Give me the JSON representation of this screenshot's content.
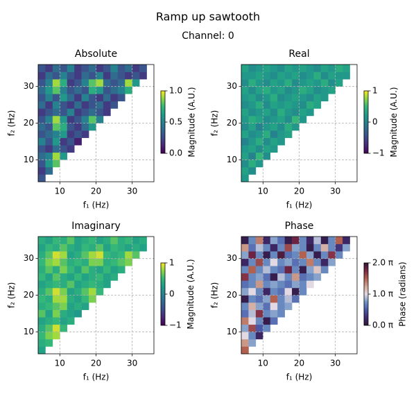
{
  "title": "Ramp up sawtooth",
  "subtitle": "Channel: 0",
  "chart_data": [
    {
      "type": "heatmap",
      "title": "Absolute",
      "xlabel": "f₁ (Hz)",
      "ylabel": "f₂ (Hz)",
      "x": [
        5,
        7,
        9,
        11,
        13,
        15,
        17,
        19,
        21,
        23,
        25,
        27,
        29,
        31,
        33,
        35
      ],
      "y": [
        5,
        7,
        9,
        11,
        13,
        15,
        17,
        19,
        21,
        23,
        25,
        27,
        29,
        31,
        33,
        35
      ],
      "z": [
        [
          0.3
        ],
        [
          0.2,
          0.4
        ],
        [
          0.3,
          0.6,
          0.8
        ],
        [
          0.4,
          0.5,
          0.9,
          0.6
        ],
        [
          0.3,
          0.2,
          0.4,
          0.3,
          0.2
        ],
        [
          0.5,
          0.3,
          0.6,
          0.2,
          0.3,
          0.1
        ],
        [
          0.3,
          0.4,
          0.5,
          0.6,
          0.2,
          0.3,
          0.2
        ],
        [
          0.4,
          0.3,
          0.8,
          0.7,
          0.3,
          0.2,
          0.4,
          0.6
        ],
        [
          0.3,
          0.5,
          0.9,
          0.6,
          0.2,
          0.3,
          0.5,
          0.8,
          0.5
        ],
        [
          0.2,
          0.3,
          0.4,
          0.3,
          0.5,
          0.2,
          0.3,
          0.4,
          0.3,
          0.2
        ],
        [
          0.4,
          0.2,
          0.5,
          0.3,
          0.2,
          0.4,
          0.2,
          0.3,
          0.4,
          0.2,
          0.3
        ],
        [
          0.3,
          0.5,
          0.3,
          0.6,
          0.4,
          0.2,
          0.5,
          0.3,
          0.2,
          0.4,
          0.2,
          0.3
        ],
        [
          0.4,
          0.6,
          0.8,
          0.5,
          0.3,
          0.4,
          0.3,
          0.7,
          0.6,
          0.3,
          0.4,
          0.5,
          0.7
        ],
        [
          0.3,
          0.5,
          0.9,
          0.7,
          0.2,
          0.3,
          0.5,
          0.8,
          0.9,
          0.4,
          0.3,
          0.4,
          0.9,
          0.6
        ],
        [
          0.2,
          0.4,
          0.3,
          0.5,
          0.3,
          0.2,
          0.4,
          0.3,
          0.5,
          0.2,
          0.4,
          0.3,
          0.2,
          0.3,
          0.2
        ],
        [
          0.3,
          0.2,
          0.4,
          0.3,
          0.5,
          0.2,
          0.3,
          0.4,
          0.2,
          0.3,
          0.5,
          0.3,
          0.4,
          0.2,
          0.3
        ]
      ],
      "xlim": [
        4,
        36
      ],
      "ylim": [
        4,
        36
      ],
      "xticks": [
        10,
        20,
        30
      ],
      "yticks": [
        10,
        20,
        30
      ],
      "grid": true,
      "colormap": "viridis",
      "clim": [
        0,
        1
      ],
      "cticks": [
        {
          "value": 0,
          "label": "0.0"
        },
        {
          "value": 0.5,
          "label": "0.5"
        },
        {
          "value": 1,
          "label": "1.0"
        }
      ],
      "clabel": "Magnitude (A.U.)"
    },
    {
      "type": "heatmap",
      "title": "Real",
      "xlabel": "f₁ (Hz)",
      "ylabel": "f₂ (Hz)",
      "x": [
        5,
        7,
        9,
        11,
        13,
        15,
        17,
        19,
        21,
        23,
        25,
        27,
        29,
        31,
        33,
        35
      ],
      "y": [
        5,
        7,
        9,
        11,
        13,
        15,
        17,
        19,
        21,
        23,
        25,
        27,
        29,
        31,
        33,
        35
      ],
      "z": [
        [
          0.2
        ],
        [
          0.3,
          0.1
        ],
        [
          0.1,
          0.4,
          0.2
        ],
        [
          0.3,
          0.0,
          0.5,
          0.1
        ],
        [
          0.2,
          0.3,
          0.1,
          0.3,
          0.2
        ],
        [
          0.0,
          0.2,
          0.4,
          0.1,
          0.3,
          0.2
        ],
        [
          0.3,
          0.1,
          0.2,
          0.4,
          0.0,
          0.2,
          0.3
        ],
        [
          0.1,
          0.3,
          0.0,
          0.2,
          0.3,
          0.1,
          0.4,
          0.2
        ],
        [
          0.2,
          0.4,
          0.3,
          0.1,
          0.2,
          0.3,
          0.1,
          0.5,
          0.2
        ],
        [
          0.3,
          0.1,
          0.2,
          0.3,
          0.1,
          0.4,
          0.2,
          0.1,
          0.3,
          0.2
        ],
        [
          0.1,
          0.2,
          0.4,
          0.1,
          0.3,
          0.2,
          0.3,
          0.2,
          0.1,
          0.4,
          0.3
        ],
        [
          0.2,
          0.3,
          0.1,
          0.2,
          0.4,
          0.1,
          0.2,
          0.3,
          0.2,
          0.1,
          0.3,
          0.2
        ],
        [
          0.3,
          0.1,
          0.3,
          0.4,
          0.2,
          0.3,
          0.1,
          0.2,
          0.4,
          0.3,
          0.1,
          0.2,
          0.3
        ],
        [
          0.1,
          0.4,
          0.2,
          0.1,
          0.3,
          0.2,
          0.4,
          0.1,
          0.2,
          0.3,
          0.2,
          0.4,
          0.1,
          0.3
        ],
        [
          0.2,
          0.2,
          0.3,
          0.2,
          0.1,
          0.3,
          0.2,
          0.3,
          0.1,
          0.2,
          0.4,
          0.1,
          0.3,
          0.2,
          0.2
        ],
        [
          0.3,
          0.1,
          0.2,
          0.3,
          0.2,
          0.1,
          0.3,
          0.2,
          0.3,
          0.2,
          0.1,
          0.3,
          0.2,
          0.4,
          0.3
        ]
      ],
      "xlim": [
        4,
        36
      ],
      "ylim": [
        4,
        36
      ],
      "xticks": [
        10,
        20,
        30
      ],
      "yticks": [
        10,
        20,
        30
      ],
      "grid": true,
      "colormap": "viridis",
      "clim": [
        -1,
        1
      ],
      "cticks": [
        {
          "value": -1,
          "label": "−1"
        },
        0,
        1
      ],
      "clabel": "Magnitude (A.U.)"
    },
    {
      "type": "heatmap",
      "title": "Imaginary",
      "xlabel": "f₁ (Hz)",
      "ylabel": "f₂ (Hz)",
      "x": [
        5,
        7,
        9,
        11,
        13,
        15,
        17,
        19,
        21,
        23,
        25,
        27,
        29,
        31,
        33,
        35
      ],
      "y": [
        5,
        7,
        9,
        11,
        13,
        15,
        17,
        19,
        21,
        23,
        25,
        27,
        29,
        31,
        33,
        35
      ],
      "z": [
        [
          0.3
        ],
        [
          0.4,
          0.5
        ],
        [
          0.5,
          0.7,
          0.8
        ],
        [
          0.4,
          0.6,
          0.9,
          0.5
        ],
        [
          0.3,
          0.4,
          0.5,
          0.3,
          0.4
        ],
        [
          0.6,
          0.3,
          0.7,
          0.4,
          0.3,
          0.2
        ],
        [
          0.4,
          0.5,
          0.6,
          0.7,
          0.3,
          0.4,
          0.3
        ],
        [
          0.5,
          0.4,
          0.8,
          0.8,
          0.4,
          0.3,
          0.5,
          0.7
        ],
        [
          0.4,
          0.6,
          0.9,
          0.7,
          0.3,
          0.4,
          0.6,
          0.8,
          0.5
        ],
        [
          0.3,
          0.4,
          0.5,
          0.4,
          0.6,
          0.3,
          0.4,
          0.5,
          0.4,
          0.3
        ],
        [
          0.5,
          0.3,
          0.6,
          0.4,
          0.3,
          0.5,
          0.3,
          0.4,
          0.5,
          0.3,
          0.4
        ],
        [
          0.4,
          0.6,
          0.4,
          0.7,
          0.5,
          0.3,
          0.6,
          0.4,
          0.3,
          0.5,
          0.3,
          0.4
        ],
        [
          0.5,
          0.7,
          0.8,
          0.6,
          0.4,
          0.5,
          0.4,
          0.7,
          0.7,
          0.4,
          0.5,
          0.6,
          0.7
        ],
        [
          0.4,
          0.6,
          0.9,
          0.8,
          0.3,
          0.4,
          0.6,
          0.8,
          0.9,
          0.5,
          0.4,
          0.5,
          0.8,
          0.6
        ],
        [
          0.3,
          0.5,
          0.4,
          0.6,
          0.4,
          0.3,
          0.5,
          0.4,
          0.6,
          0.3,
          0.5,
          0.4,
          0.3,
          0.4,
          0.3
        ],
        [
          0.4,
          0.3,
          0.5,
          0.4,
          0.6,
          0.3,
          0.4,
          0.5,
          0.3,
          0.4,
          0.6,
          0.4,
          0.5,
          0.3,
          0.4
        ]
      ],
      "xlim": [
        4,
        36
      ],
      "ylim": [
        4,
        36
      ],
      "xticks": [
        10,
        20,
        30
      ],
      "yticks": [
        10,
        20,
        30
      ],
      "grid": true,
      "colormap": "viridis",
      "clim": [
        -1,
        1
      ],
      "cticks": [
        {
          "value": -1,
          "label": "−1"
        },
        0,
        1
      ],
      "clabel": "Magnitude (A.U.)"
    },
    {
      "type": "heatmap",
      "title": "Phase",
      "xlabel": "f₁ (Hz)",
      "ylabel": "f₂ (Hz)",
      "x": [
        5,
        7,
        9,
        11,
        13,
        15,
        17,
        19,
        21,
        23,
        25,
        27,
        29,
        31,
        33,
        35
      ],
      "y": [
        5,
        7,
        9,
        11,
        13,
        15,
        17,
        19,
        21,
        23,
        25,
        27,
        29,
        31,
        33,
        35
      ],
      "z": [
        [
          1.5
        ],
        [
          1.3,
          0.8
        ],
        [
          1.0,
          0.7,
          0.2
        ],
        [
          0.8,
          1.6,
          0.5,
          0.7
        ],
        [
          1.4,
          1.0,
          0.7,
          0.1,
          0.6
        ],
        [
          0.6,
          0.9,
          1.7,
          0.7,
          0.8,
          0.7
        ],
        [
          0.7,
          1.2,
          0.8,
          0.6,
          1.0,
          0.7,
          0.8
        ],
        [
          0.1,
          0.7,
          0.6,
          0.8,
          1.5,
          0.7,
          0.9,
          0.6
        ],
        [
          0.8,
          1.0,
          0.7,
          0.2,
          0.7,
          0.6,
          1.0,
          0.1,
          0.7
        ],
        [
          0.6,
          0.7,
          1.3,
          0.7,
          0.8,
          0.7,
          0.6,
          0.8,
          0.7,
          1.0
        ],
        [
          1.7,
          0.7,
          0.8,
          0.6,
          0.1,
          0.9,
          0.7,
          1.3,
          0.6,
          0.7,
          0.8
        ],
        [
          0.7,
          1.5,
          0.7,
          0.9,
          0.7,
          0.6,
          1.8,
          0.7,
          0.1,
          0.8,
          1.1,
          0.7
        ],
        [
          0.2,
          0.7,
          1.6,
          0.7,
          1.0,
          0.7,
          0.8,
          0.6,
          0.7,
          1.4,
          0.7,
          0.2,
          0.8
        ],
        [
          0.8,
          1.8,
          0.7,
          0.1,
          0.7,
          1.9,
          0.6,
          0.7,
          1.5,
          0.8,
          0.1,
          0.7,
          1.7,
          0.7
        ],
        [
          1.3,
          0.6,
          0.9,
          0.7,
          0.2,
          0.7,
          1.6,
          0.8,
          0.7,
          0.1,
          0.7,
          1.2,
          0.7,
          0.3,
          0.8
        ],
        [
          0.1,
          0.7,
          1.4,
          0.2,
          0.8,
          0.6,
          0.1,
          1.8,
          0.7,
          0.2,
          0.9,
          0.1,
          0.7,
          1.5,
          0.2
        ]
      ],
      "xlim": [
        4,
        36
      ],
      "ylim": [
        4,
        36
      ],
      "xticks": [
        10,
        20,
        30
      ],
      "yticks": [
        10,
        20,
        30
      ],
      "grid": true,
      "colormap": "twilight_shifted",
      "clim": [
        0,
        2
      ],
      "cticks": [
        {
          "value": 0,
          "label": "0.0 π"
        },
        {
          "value": 1,
          "label": "1.0 π"
        },
        {
          "value": 2,
          "label": "2.0 π"
        }
      ],
      "clabel": "Phase (radians)"
    }
  ]
}
